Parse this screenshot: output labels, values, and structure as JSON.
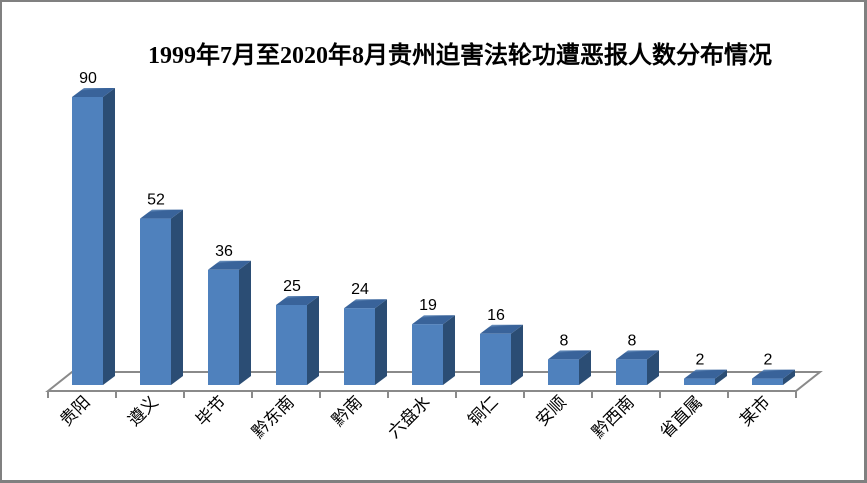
{
  "page": {
    "background": "#ffffff",
    "frame_border_color": "#808080"
  },
  "chart_data": {
    "type": "bar",
    "style": "3d-column",
    "title": "1999年7月至2020年8月贵州迫害法轮功遭恶报人数分布情况",
    "categories": [
      "贵阳",
      "遵义",
      "毕节",
      "黔东南",
      "黔南",
      "六盘水",
      "铜仁",
      "安顺",
      "黔西南",
      "省直属",
      "某市"
    ],
    "values": [
      90,
      52,
      36,
      25,
      24,
      19,
      16,
      8,
      8,
      2,
      2
    ],
    "data_labels_shown": true,
    "xlabel": "",
    "ylabel": "",
    "ylim": [
      0,
      90
    ],
    "grid": false,
    "legend_position": "none",
    "category_label_rotation_deg": -45,
    "colors": {
      "bar_front": "#4f81bd",
      "bar_side": "#2b4d74",
      "bar_top_dark": "#39639a",
      "bar_top_light": "#8fb2d8",
      "axis_line": "#8a8a8a",
      "value_label_text": "#000000",
      "category_label_text": "#000000",
      "title_text": "#000000"
    }
  }
}
